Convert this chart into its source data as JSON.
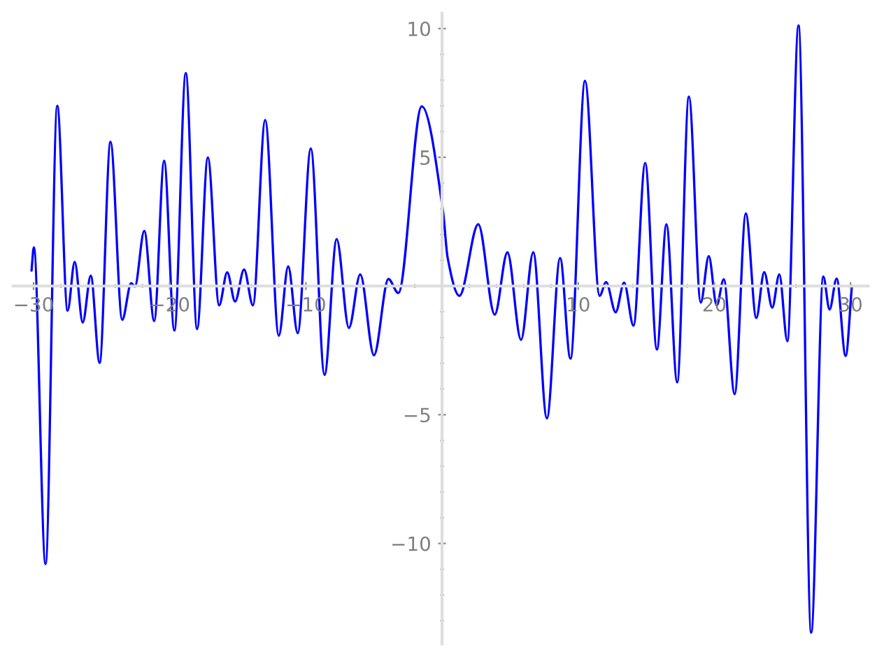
{
  "chart_data": {
    "type": "line",
    "xlim": [
      -31.5,
      31.3
    ],
    "ylim": [
      -13.9,
      10.6
    ],
    "xticks": [
      {
        "value": -30,
        "label": "−30"
      },
      {
        "value": -28,
        "label": null
      },
      {
        "value": -26,
        "label": null
      },
      {
        "value": -24,
        "label": null
      },
      {
        "value": -22,
        "label": null
      },
      {
        "value": -20,
        "label": "−20"
      },
      {
        "value": -18,
        "label": null
      },
      {
        "value": -16,
        "label": null
      },
      {
        "value": -14,
        "label": null
      },
      {
        "value": -12,
        "label": null
      },
      {
        "value": -10,
        "label": "−10"
      },
      {
        "value": -8,
        "label": null
      },
      {
        "value": -6,
        "label": null
      },
      {
        "value": -4,
        "label": null
      },
      {
        "value": -2,
        "label": null
      },
      {
        "value": 2,
        "label": null
      },
      {
        "value": 4,
        "label": null
      },
      {
        "value": 6,
        "label": null
      },
      {
        "value": 8,
        "label": null
      },
      10,
      {
        "value": 12,
        "label": null
      },
      {
        "value": 14,
        "label": null
      },
      {
        "value": 16,
        "label": null
      },
      {
        "value": 18,
        "label": null
      },
      20,
      {
        "value": 22,
        "label": null
      },
      {
        "value": 24,
        "label": null
      },
      {
        "value": 26,
        "label": null
      },
      {
        "value": 28,
        "label": null
      },
      30
    ],
    "yticks": [
      {
        "value": -13,
        "label": null
      },
      {
        "value": -12,
        "label": null
      },
      {
        "value": -11,
        "label": null
      },
      {
        "value": -10,
        "label": "−10"
      },
      {
        "value": -9,
        "label": null
      },
      {
        "value": -8,
        "label": null
      },
      {
        "value": -7,
        "label": null
      },
      {
        "value": -6,
        "label": null
      },
      {
        "value": -5,
        "label": "−5"
      },
      {
        "value": -4,
        "label": null
      },
      {
        "value": -3,
        "label": null
      },
      {
        "value": -2,
        "label": null
      },
      {
        "value": -1,
        "label": null
      },
      {
        "value": 1,
        "label": null
      },
      {
        "value": 2,
        "label": null
      },
      {
        "value": 3,
        "label": null
      },
      {
        "value": 4,
        "label": null
      },
      5,
      {
        "value": 6,
        "label": null
      },
      {
        "value": 7,
        "label": null
      },
      {
        "value": 8,
        "label": null
      },
      {
        "value": 9,
        "label": null
      },
      10
    ],
    "grid": false,
    "marker": "none",
    "line_style": "solid",
    "series": [
      {
        "color": "#0000ff",
        "x": [
          -30.15,
          -29.98,
          -29.12,
          -28.26,
          -27.5,
          -26.98,
          -26.39,
          -25.8,
          -25.15,
          -24.35,
          -23.49,
          -22.83,
          -22.56,
          -21.87,
          -21.14,
          -20.41,
          -19.66,
          -18.82,
          -17.99,
          -17.2,
          -16.37,
          -15.78,
          -15.2,
          -14.54,
          -13.89,
          -12.99,
          -11.99,
          -11.3,
          -10.6,
          -9.64,
          -8.63,
          -7.74,
          -6.84,
          -6.01,
          -5.0,
          -3.94,
          -3.21,
          -1.49,
          0.07,
          0.41,
          1.28,
          2.66,
          3.87,
          4.8,
          5.8,
          6.7,
          7.7,
          8.67,
          9.43,
          10.5,
          11.57,
          12.05,
          12.75,
          13.37,
          14.06,
          14.92,
          15.78,
          16.48,
          17.27,
          18.13,
          19.0,
          19.59,
          20.17,
          20.69,
          21.49,
          22.31,
          23.08,
          23.66,
          24.25,
          24.77,
          25.36,
          26.18,
          27.11,
          28.0,
          28.46,
          28.98,
          29.64,
          30.1
        ],
        "values": [
          0.6,
          1.5,
          -10.8,
          7.0,
          -0.96,
          0.94,
          -1.42,
          0.4,
          -2.98,
          5.6,
          -1.31,
          0.11,
          -0.02,
          2.14,
          -1.36,
          4.87,
          -1.73,
          8.27,
          -1.67,
          5.0,
          -0.75,
          0.53,
          -0.6,
          0.64,
          -0.75,
          6.45,
          -1.93,
          0.76,
          -1.83,
          5.34,
          -3.45,
          1.82,
          -1.63,
          0.45,
          -2.69,
          0.27,
          -0.27,
          6.98,
          2.9,
          1.1,
          -0.38,
          2.4,
          -1.11,
          1.31,
          -2.09,
          1.31,
          -5.14,
          1.09,
          -2.82,
          7.97,
          -0.38,
          0.15,
          -1.02,
          0.13,
          -1.54,
          4.78,
          -2.47,
          2.4,
          -3.74,
          7.36,
          -0.64,
          1.16,
          -0.75,
          0.26,
          -4.2,
          2.82,
          -1.24,
          0.54,
          -0.84,
          0.45,
          -2.14,
          10.12,
          -13.46,
          0.37,
          -0.91,
          0.29,
          -2.72,
          0.0
        ]
      }
    ]
  }
}
